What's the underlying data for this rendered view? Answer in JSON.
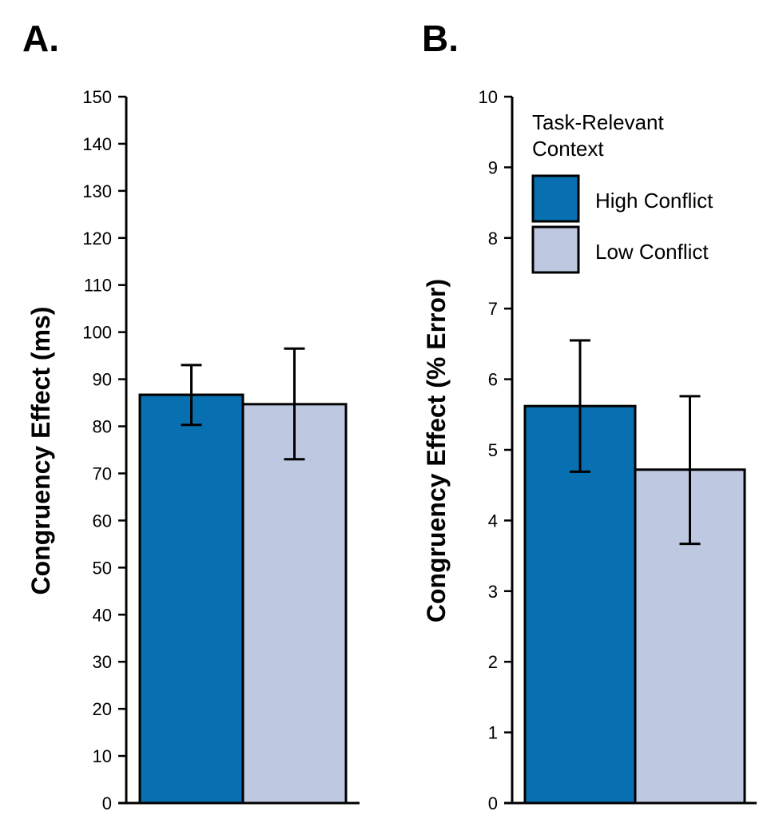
{
  "colors": {
    "high_conflict": "#0870b0",
    "low_conflict": "#bec9e1"
  },
  "legend": {
    "title_line1": "Task-Relevant",
    "title_line2": "Context",
    "placement": "top-right",
    "entries": [
      "High Conflict",
      "Low Conflict"
    ]
  },
  "chart_data": [
    {
      "type": "bar",
      "panel": "A.",
      "ylabel": "Congruency Effect (ms)",
      "ylim": [
        0,
        150
      ],
      "yticks": [
        0,
        10,
        20,
        30,
        40,
        50,
        60,
        70,
        80,
        90,
        100,
        110,
        120,
        130,
        140,
        150
      ],
      "series": [
        {
          "name": "High Conflict",
          "value": 86.7,
          "error_low": 80.3,
          "error_high": 93.0
        },
        {
          "name": "Low Conflict",
          "value": 84.7,
          "error_low": 73.0,
          "error_high": 96.5
        }
      ]
    },
    {
      "type": "bar",
      "panel": "B.",
      "ylabel": "Congruency Effect (% Error)",
      "ylim": [
        0,
        10
      ],
      "yticks": [
        0,
        1,
        2,
        3,
        4,
        5,
        6,
        7,
        8,
        9,
        10
      ],
      "series": [
        {
          "name": "High Conflict",
          "value": 5.62,
          "error_low": 4.69,
          "error_high": 6.55
        },
        {
          "name": "Low Conflict",
          "value": 4.72,
          "error_low": 3.67,
          "error_high": 5.76
        }
      ]
    }
  ]
}
